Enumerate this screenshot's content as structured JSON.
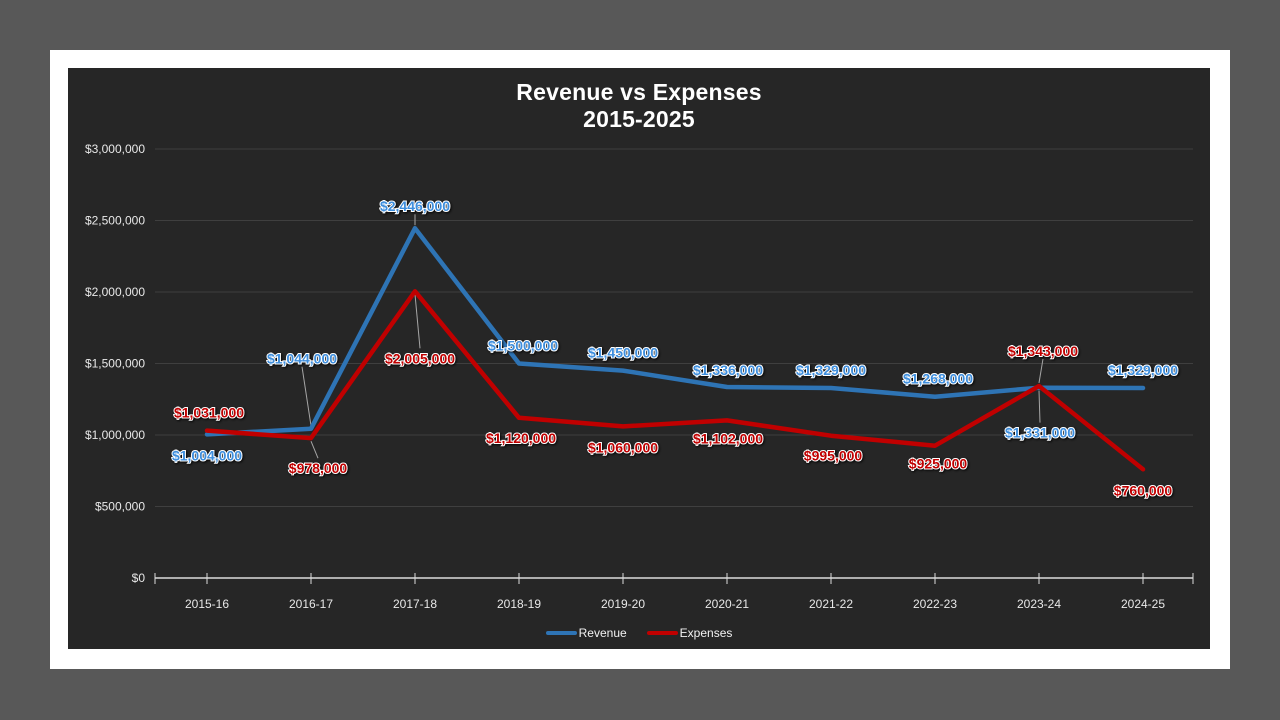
{
  "page": {
    "desktop_background": "#585858",
    "slide_background": "#FFFFFF"
  },
  "chart": {
    "background": "#262626",
    "title_line1": "Revenue vs Expenses",
    "title_line2": "2015-2025",
    "grid_color": "#3F3F3F",
    "axis_color": "#DCDCDC",
    "leader_line_color": "#A6A6A6",
    "legend": [
      {
        "label": "Revenue",
        "color": "#2E74B5"
      },
      {
        "label": "Expenses",
        "color": "#C00000"
      }
    ]
  },
  "chart_data": {
    "type": "line",
    "title": "Revenue vs Expenses 2015-2025",
    "categories": [
      "2015-16",
      "2016-17",
      "2017-18",
      "2018-19",
      "2019-20",
      "2020-21",
      "2021-22",
      "2022-23",
      "2023-24",
      "2024-25"
    ],
    "series": [
      {
        "name": "Revenue",
        "color": "#2E74B5",
        "label_color": "#3E8EDD",
        "values": [
          1004000,
          1044000,
          2446000,
          1500000,
          1450000,
          1336000,
          1329000,
          1268000,
          1331000,
          1329000
        ],
        "labels": [
          "$1,004,000",
          "$1,044,000",
          "$2,446,000",
          "$1,500,000",
          "$1,450,000",
          "$1,336,000",
          "$1,329,000",
          "$1,268,000",
          "$1,331,000",
          "$1,329,000"
        ]
      },
      {
        "name": "Expenses",
        "color": "#C00000",
        "label_color": "#C00000",
        "values": [
          1031000,
          978000,
          2005000,
          1120000,
          1060000,
          1102000,
          995000,
          925000,
          1343000,
          760000
        ],
        "labels": [
          "$1,031,000",
          "$978,000",
          "$2,005,000",
          "$1,120,000",
          "$1,060,000",
          "$1,102,000",
          "$995,000",
          "$925,000",
          "$1,343,000",
          "$760,000"
        ]
      }
    ],
    "y_axis": {
      "min": 0,
      "max": 3000000,
      "step": 500000,
      "tick_labels": [
        "$0",
        "$500,000",
        "$1,000,000",
        "$1,500,000",
        "$2,000,000",
        "$2,500,000",
        "$3,000,000"
      ]
    },
    "x_axis": {
      "tick_marks": "category-centers"
    },
    "grid": true,
    "legend_position": "bottom"
  }
}
